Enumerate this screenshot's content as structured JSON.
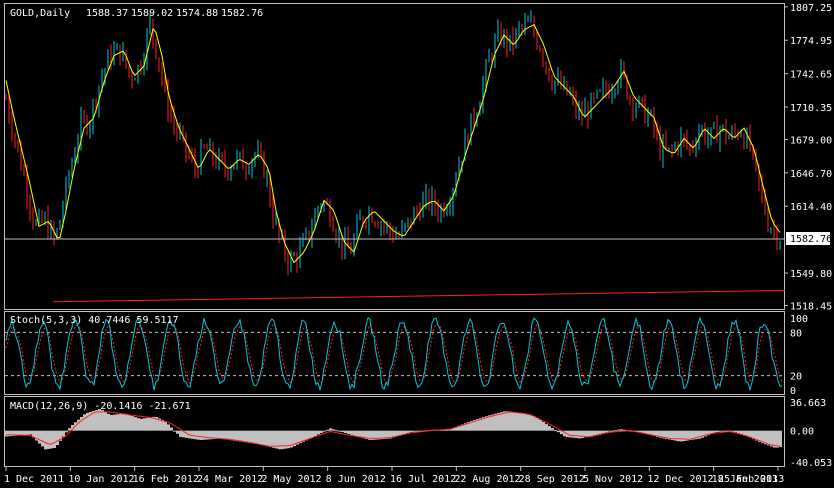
{
  "chart_data": [
    {
      "type": "bar",
      "title": "GOLD,Daily",
      "ohlc": {
        "open": "1588.37",
        "high": "1589.02",
        "low": "1574.88",
        "close": "1582.76"
      },
      "current_price_label": "1582.76",
      "y_ticks": [
        "1807.25",
        "1774.95",
        "1742.65",
        "1710.35",
        "1679.00",
        "1646.70",
        "1614.40",
        "1549.80",
        "1518.45"
      ],
      "ylim": [
        1515,
        1810
      ],
      "x_ticks": [
        "1 Dec 2011",
        "10 Jan 2012",
        "16 Feb 2012",
        "24 Mar 2012",
        "2 May 2012",
        "8 Jun 2012",
        "16 Jul 2012",
        "22 Aug 2012",
        "28 Sep 2012",
        "5 Nov 2012",
        "12 Dec 2012",
        "18 Jan 2013",
        "25 Feb 2013"
      ],
      "price_path": [
        [
          0,
          1745
        ],
        [
          10,
          1700
        ],
        [
          25,
          1640
        ],
        [
          35,
          1595
        ],
        [
          45,
          1600
        ],
        [
          55,
          1580
        ],
        [
          62,
          1610
        ],
        [
          70,
          1650
        ],
        [
          80,
          1690
        ],
        [
          90,
          1700
        ],
        [
          100,
          1735
        ],
        [
          110,
          1760
        ],
        [
          120,
          1765
        ],
        [
          130,
          1740
        ],
        [
          140,
          1750
        ],
        [
          150,
          1790
        ],
        [
          158,
          1760
        ],
        [
          165,
          1720
        ],
        [
          175,
          1690
        ],
        [
          185,
          1670
        ],
        [
          195,
          1650
        ],
        [
          205,
          1670
        ],
        [
          215,
          1660
        ],
        [
          225,
          1650
        ],
        [
          235,
          1660
        ],
        [
          245,
          1655
        ],
        [
          255,
          1665
        ],
        [
          265,
          1650
        ],
        [
          272,
          1610
        ],
        [
          280,
          1580
        ],
        [
          290,
          1560
        ],
        [
          300,
          1570
        ],
        [
          310,
          1590
        ],
        [
          320,
          1620
        ],
        [
          330,
          1610
        ],
        [
          340,
          1580
        ],
        [
          350,
          1570
        ],
        [
          360,
          1600
        ],
        [
          370,
          1610
        ],
        [
          380,
          1600
        ],
        [
          390,
          1590
        ],
        [
          400,
          1585
        ],
        [
          410,
          1600
        ],
        [
          420,
          1615
        ],
        [
          430,
          1620
        ],
        [
          440,
          1610
        ],
        [
          450,
          1625
        ],
        [
          460,
          1660
        ],
        [
          470,
          1690
        ],
        [
          480,
          1720
        ],
        [
          490,
          1760
        ],
        [
          500,
          1780
        ],
        [
          510,
          1770
        ],
        [
          520,
          1785
        ],
        [
          530,
          1790
        ],
        [
          540,
          1770
        ],
        [
          550,
          1740
        ],
        [
          560,
          1730
        ],
        [
          570,
          1720
        ],
        [
          580,
          1700
        ],
        [
          590,
          1710
        ],
        [
          600,
          1720
        ],
        [
          610,
          1730
        ],
        [
          620,
          1745
        ],
        [
          630,
          1720
        ],
        [
          640,
          1710
        ],
        [
          650,
          1700
        ],
        [
          660,
          1670
        ],
        [
          670,
          1665
        ],
        [
          680,
          1680
        ],
        [
          690,
          1670
        ],
        [
          700,
          1690
        ],
        [
          710,
          1680
        ],
        [
          720,
          1690
        ],
        [
          730,
          1680
        ],
        [
          740,
          1690
        ],
        [
          750,
          1670
        ],
        [
          760,
          1630
        ],
        [
          768,
          1600
        ],
        [
          775,
          1590
        ],
        [
          780,
          1585
        ]
      ],
      "horizontal_line": 1582.76,
      "trendline": {
        "from": [
          53,
          1522
        ],
        "to": [
          785,
          1533
        ],
        "color": "#ff2020"
      },
      "colors": {
        "bull": "#00c8dc",
        "bear": "#ff2020",
        "ma": "#ffff00",
        "axis": "#ffffff",
        "background": "#000000"
      }
    },
    {
      "type": "line",
      "title": "Stoch(5,3,3) 40.7446 59.5117",
      "y_ticks": [
        "100",
        "80",
        "20",
        "0"
      ],
      "ylim": [
        0,
        100
      ],
      "levels": [
        20,
        80
      ],
      "colors": {
        "main": "#00c8dc",
        "signal": "#ff2020",
        "level": "#c0c0c0"
      }
    },
    {
      "type": "area",
      "title": "MACD(12,26,9) -20.1416 -21.671",
      "y_ticks": [
        "36.663",
        "0.00",
        "-40.053"
      ],
      "ylim": [
        -40.053,
        36.663
      ],
      "histogram_path": [
        [
          0,
          -8
        ],
        [
          30,
          -5
        ],
        [
          45,
          -24
        ],
        [
          55,
          -22
        ],
        [
          70,
          5
        ],
        [
          85,
          22
        ],
        [
          100,
          28
        ],
        [
          110,
          20
        ],
        [
          125,
          22
        ],
        [
          140,
          15
        ],
        [
          155,
          18
        ],
        [
          165,
          12
        ],
        [
          180,
          -8
        ],
        [
          200,
          -12
        ],
        [
          220,
          -10
        ],
        [
          240,
          -14
        ],
        [
          260,
          -18
        ],
        [
          280,
          -24
        ],
        [
          290,
          -22
        ],
        [
          310,
          -10
        ],
        [
          330,
          3
        ],
        [
          350,
          -5
        ],
        [
          370,
          -12
        ],
        [
          390,
          -10
        ],
        [
          410,
          -2
        ],
        [
          430,
          1
        ],
        [
          450,
          2
        ],
        [
          470,
          12
        ],
        [
          490,
          20
        ],
        [
          505,
          25
        ],
        [
          520,
          23
        ],
        [
          535,
          18
        ],
        [
          550,
          5
        ],
        [
          565,
          -8
        ],
        [
          580,
          -10
        ],
        [
          600,
          -4
        ],
        [
          620,
          2
        ],
        [
          640,
          -2
        ],
        [
          660,
          -9
        ],
        [
          680,
          -14
        ],
        [
          700,
          -10
        ],
        [
          715,
          -2
        ],
        [
          730,
          0
        ],
        [
          745,
          -6
        ],
        [
          760,
          -15
        ],
        [
          775,
          -22
        ],
        [
          785,
          -20
        ]
      ],
      "signal_path": [
        [
          0,
          -5
        ],
        [
          30,
          -6
        ],
        [
          50,
          -18
        ],
        [
          65,
          -8
        ],
        [
          80,
          12
        ],
        [
          95,
          24
        ],
        [
          110,
          24
        ],
        [
          130,
          20
        ],
        [
          150,
          17
        ],
        [
          170,
          10
        ],
        [
          190,
          -6
        ],
        [
          210,
          -9
        ],
        [
          230,
          -11
        ],
        [
          250,
          -15
        ],
        [
          270,
          -20
        ],
        [
          290,
          -19
        ],
        [
          310,
          -10
        ],
        [
          330,
          -1
        ],
        [
          350,
          -6
        ],
        [
          370,
          -10
        ],
        [
          390,
          -9
        ],
        [
          410,
          -3
        ],
        [
          430,
          0
        ],
        [
          450,
          2
        ],
        [
          470,
          10
        ],
        [
          490,
          18
        ],
        [
          510,
          24
        ],
        [
          530,
          21
        ],
        [
          550,
          8
        ],
        [
          570,
          -6
        ],
        [
          590,
          -8
        ],
        [
          610,
          -2
        ],
        [
          630,
          0
        ],
        [
          650,
          -5
        ],
        [
          670,
          -10
        ],
        [
          690,
          -11
        ],
        [
          710,
          -4
        ],
        [
          730,
          -1
        ],
        [
          750,
          -8
        ],
        [
          770,
          -18
        ],
        [
          785,
          -21
        ]
      ],
      "colors": {
        "histogram": "#c0c0c0",
        "signal": "#ff2020"
      }
    }
  ]
}
